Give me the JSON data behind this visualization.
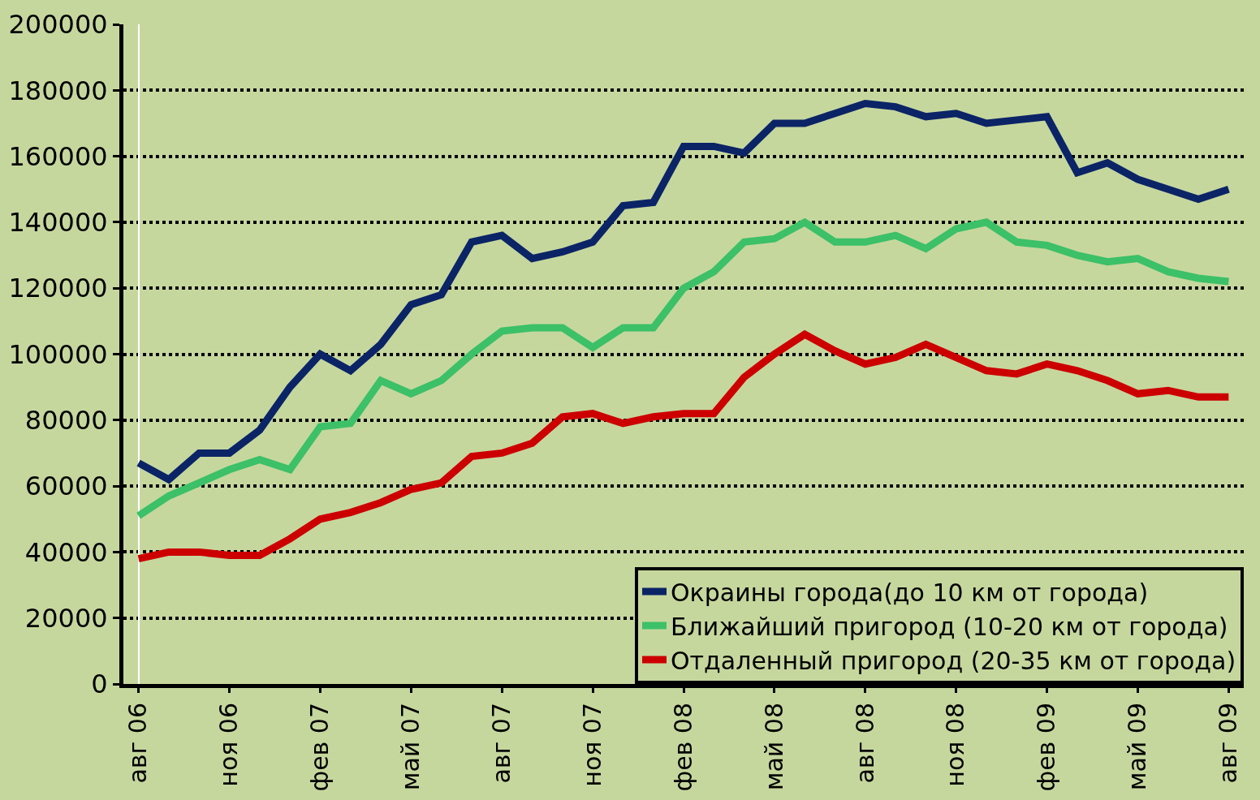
{
  "chart_data": {
    "type": "line",
    "categories": [
      "авг 06",
      null,
      null,
      "ноя 06",
      null,
      null,
      "фев 07",
      null,
      null,
      "май 07",
      null,
      null,
      "авг 07",
      null,
      null,
      "ноя 07",
      null,
      null,
      "фев 08",
      null,
      null,
      "май 08",
      null,
      null,
      "авг 08",
      null,
      null,
      "ноя 08",
      null,
      null,
      "фев 09",
      null,
      null,
      "май 09",
      null,
      null,
      "авг 09"
    ],
    "series": [
      {
        "name": "Окраины города(до 10 км от города)",
        "color": "#0b2466",
        "values": [
          67000,
          62000,
          70000,
          70000,
          77000,
          90000,
          100000,
          95000,
          103000,
          115000,
          118000,
          134000,
          136000,
          129000,
          131000,
          134000,
          145000,
          146000,
          163000,
          163000,
          161000,
          170000,
          170000,
          173000,
          176000,
          175000,
          172000,
          173000,
          170000,
          171000,
          172000,
          155000,
          158000,
          153000,
          150000,
          147000,
          150000
        ]
      },
      {
        "name": "Ближайший пригород (10-20 км от города)",
        "color": "#3cc068",
        "values": [
          51000,
          57000,
          61000,
          65000,
          68000,
          65000,
          78000,
          79000,
          92000,
          88000,
          92000,
          100000,
          107000,
          108000,
          108000,
          102000,
          108000,
          108000,
          120000,
          125000,
          134000,
          135000,
          140000,
          134000,
          134000,
          136000,
          132000,
          138000,
          140000,
          134000,
          133000,
          130000,
          128000,
          129000,
          125000,
          123000,
          122000
        ]
      },
      {
        "name": "Отдаленный пригород (20-35 км от города)",
        "color": "#cc0000",
        "values": [
          38000,
          40000,
          40000,
          39000,
          39000,
          44000,
          50000,
          52000,
          55000,
          59000,
          61000,
          69000,
          70000,
          73000,
          81000,
          82000,
          79000,
          81000,
          82000,
          82000,
          93000,
          100000,
          106000,
          101000,
          97000,
          99000,
          103000,
          99000,
          95000,
          94000,
          97000,
          95000,
          92000,
          88000,
          89000,
          87000,
          87000
        ]
      }
    ],
    "ylim": [
      0,
      200000
    ],
    "yticks": [
      0,
      20000,
      40000,
      60000,
      80000,
      100000,
      120000,
      140000,
      160000,
      180000,
      200000
    ],
    "grid": "y",
    "legend": "bottom right",
    "marker": "none",
    "line_style": "solid"
  }
}
